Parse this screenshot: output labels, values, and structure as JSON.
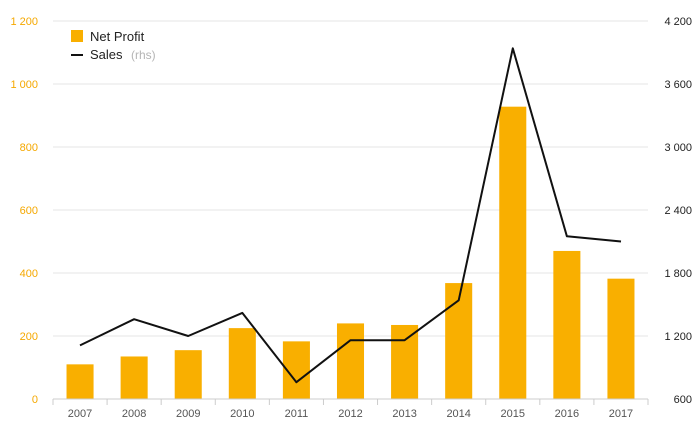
{
  "chart_data": {
    "type": "bar",
    "categories": [
      "2007",
      "2008",
      "2009",
      "2010",
      "2011",
      "2012",
      "2013",
      "2014",
      "2015",
      "2016",
      "2017"
    ],
    "series": [
      {
        "name": "Net Profit",
        "type": "bar",
        "axis": "left",
        "color": "#F9AF00",
        "values": [
          110,
          135,
          155,
          225,
          183,
          240,
          235,
          368,
          928,
          470,
          382
        ]
      },
      {
        "name": "Sales",
        "type": "line",
        "axis": "right",
        "color": "#111111",
        "values": [
          1110,
          1360,
          1200,
          1420,
          760,
          1160,
          1160,
          1540,
          3940,
          2150,
          2100
        ]
      }
    ],
    "legend": {
      "position": "top-left",
      "items": [
        {
          "label": "Net Profit",
          "suffix": ""
        },
        {
          "label": "Sales",
          "suffix": "(rhs)"
        }
      ]
    },
    "y_left": {
      "ylim": [
        0,
        1200
      ],
      "ticks": [
        0,
        200,
        400,
        600,
        800,
        1000,
        1200
      ],
      "tick_labels": [
        "0",
        "200",
        "400",
        "600",
        "800",
        "1 000",
        "1 200"
      ],
      "color": "#F5A800"
    },
    "y_right": {
      "ylim": [
        600,
        4200
      ],
      "ticks": [
        600,
        1200,
        1800,
        2400,
        3000,
        3600,
        4200
      ],
      "tick_labels": [
        "600",
        "1 200",
        "1 800",
        "2 400",
        "3 000",
        "3 600",
        "4 200"
      ],
      "color": "#222222"
    },
    "grid": true,
    "title": "",
    "xlabel": "",
    "ylabel": ""
  }
}
